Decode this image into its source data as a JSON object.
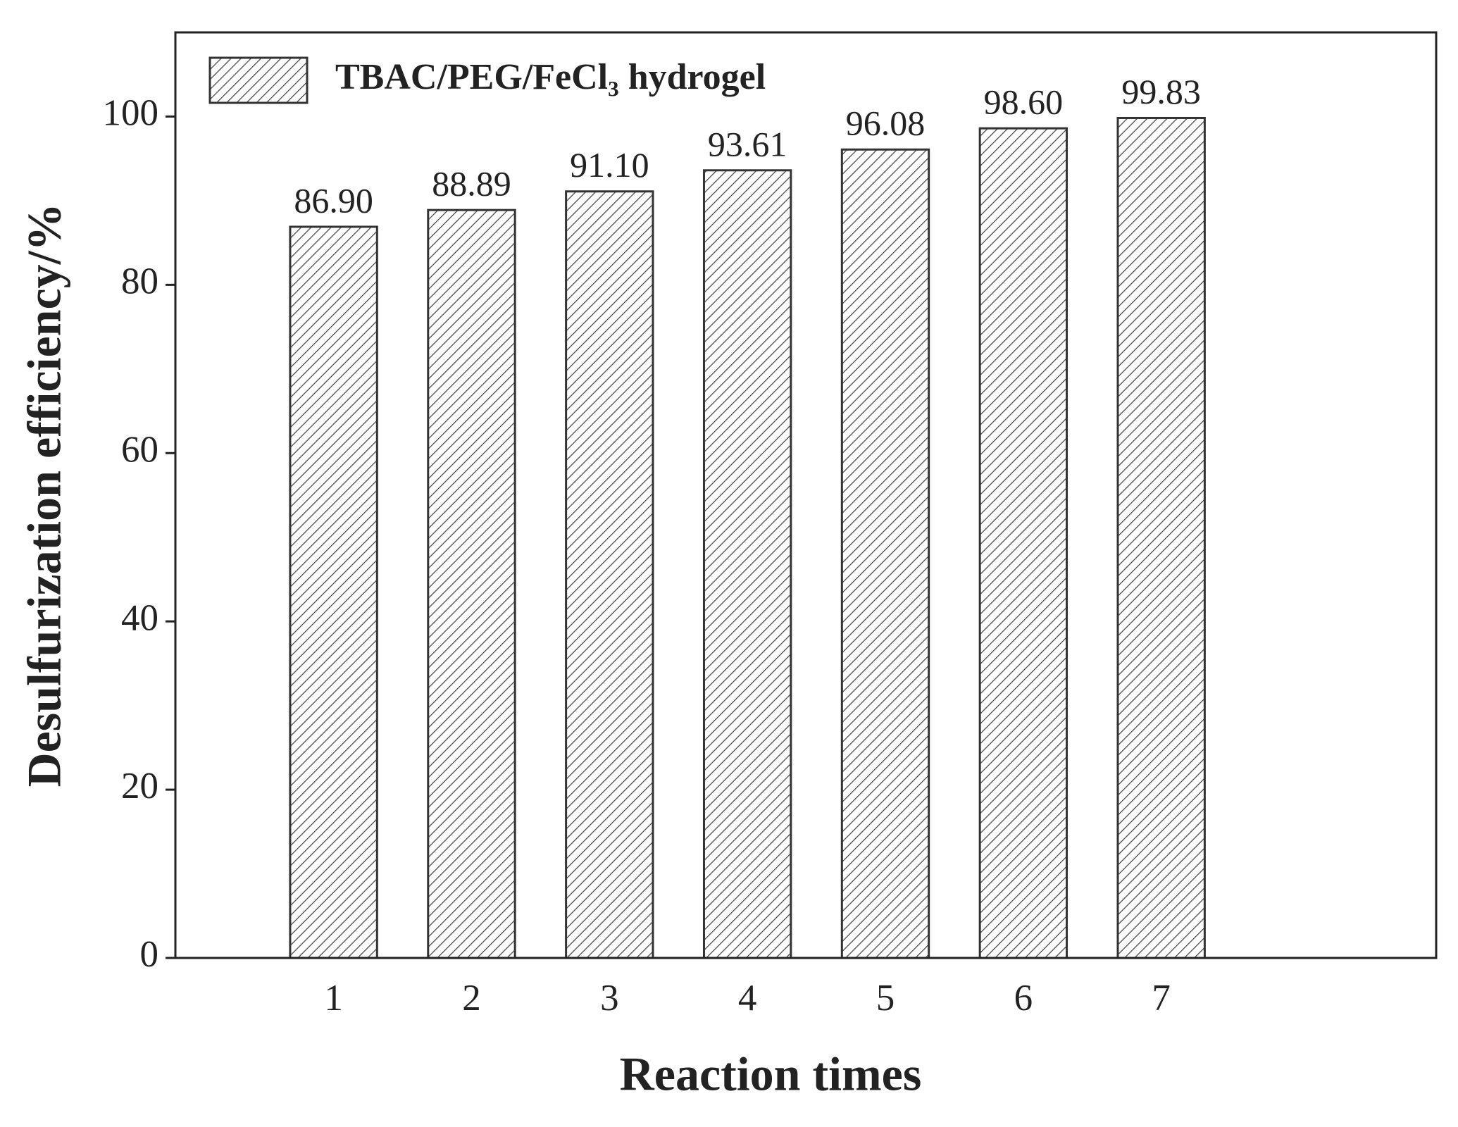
{
  "chart_data": {
    "type": "bar",
    "x_label": "Reaction times",
    "y_label": "Desulfurization efficiency/%",
    "categories": [
      "1",
      "2",
      "3",
      "4",
      "5",
      "6",
      "7"
    ],
    "series": [
      {
        "name": "TBAC/PEG/FeCl₃ hydrogel",
        "color": "#333333",
        "values": [
          86.9,
          88.89,
          91.1,
          93.61,
          96.08,
          98.6,
          99.83
        ],
        "value_labels": [
          "86.90",
          "88.89",
          "91.10",
          "93.61",
          "96.08",
          "98.60",
          "99.83"
        ]
      }
    ],
    "ylim": [
      0,
      110
    ],
    "yticks": [
      0,
      20,
      40,
      60,
      80,
      100
    ],
    "grid": false,
    "legend": "upper left"
  }
}
